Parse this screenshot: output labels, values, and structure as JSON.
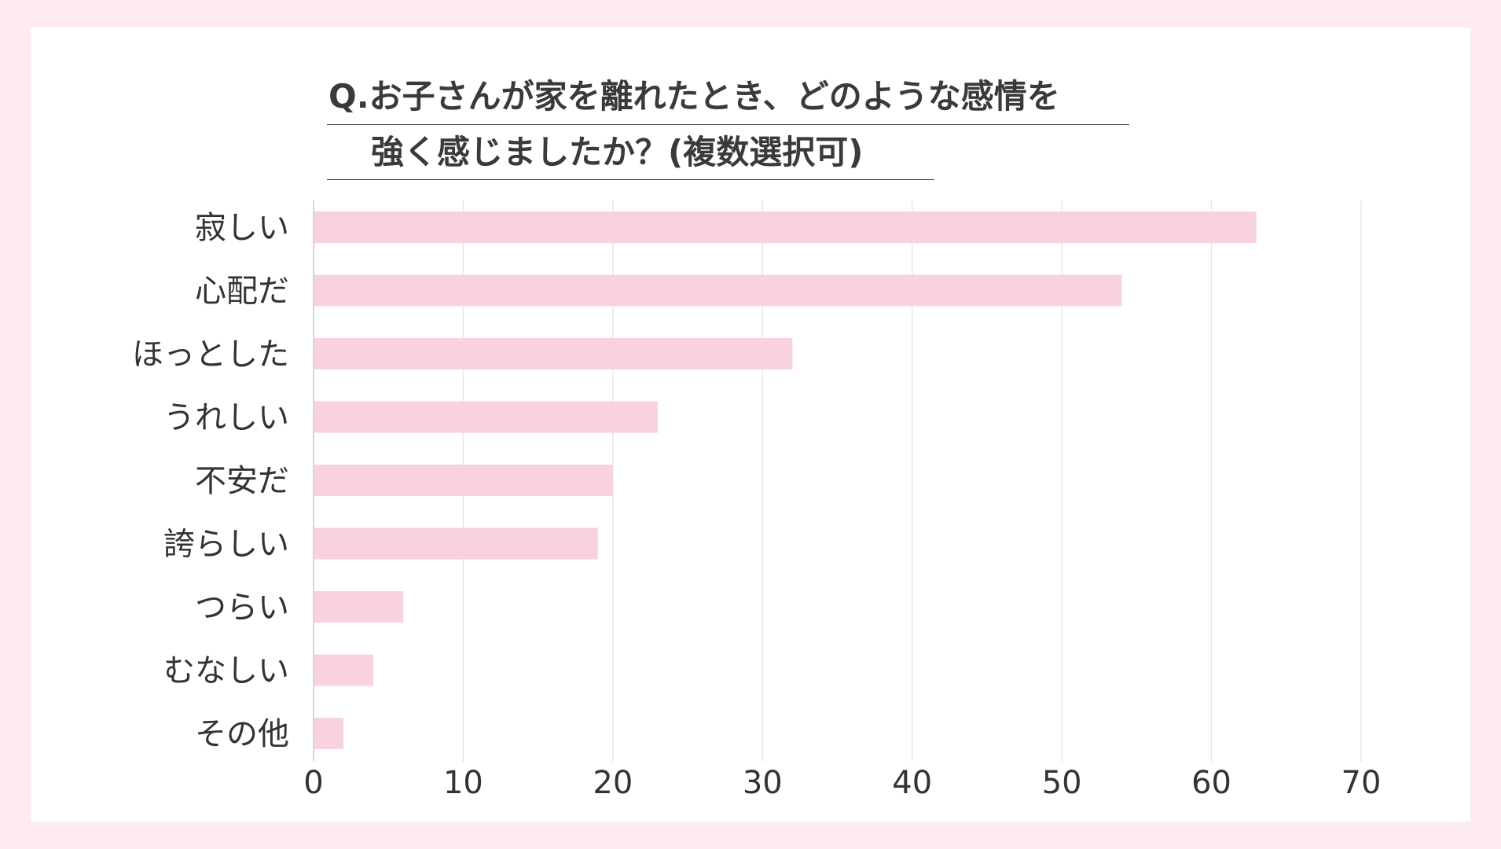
{
  "colors": {
    "page_background": "#fdebef",
    "card_background": "#ffffff",
    "bar": "#f8d3df",
    "grid": "#e3e3e3",
    "axis": "#cccccc",
    "text": "#333333"
  },
  "chart_data": {
    "type": "bar",
    "orientation": "horizontal",
    "title_lines": [
      "Q.お子さんが家を離れたとき、どのような感情を",
      "強く感じましたか？(複数選択可)"
    ],
    "categories": [
      "寂しい",
      "心配だ",
      "ほっとした",
      "うれしい",
      "不安だ",
      "誇らしい",
      "つらい",
      "むなしい",
      "その他"
    ],
    "values": [
      63,
      54,
      32,
      23,
      20,
      19,
      6,
      4,
      2
    ],
    "xlim": [
      0,
      70
    ],
    "xticks": [
      0,
      10,
      20,
      30,
      40,
      50,
      60,
      70
    ],
    "xlabel": "",
    "ylabel": "",
    "grid": "vertical",
    "legend": "none"
  }
}
